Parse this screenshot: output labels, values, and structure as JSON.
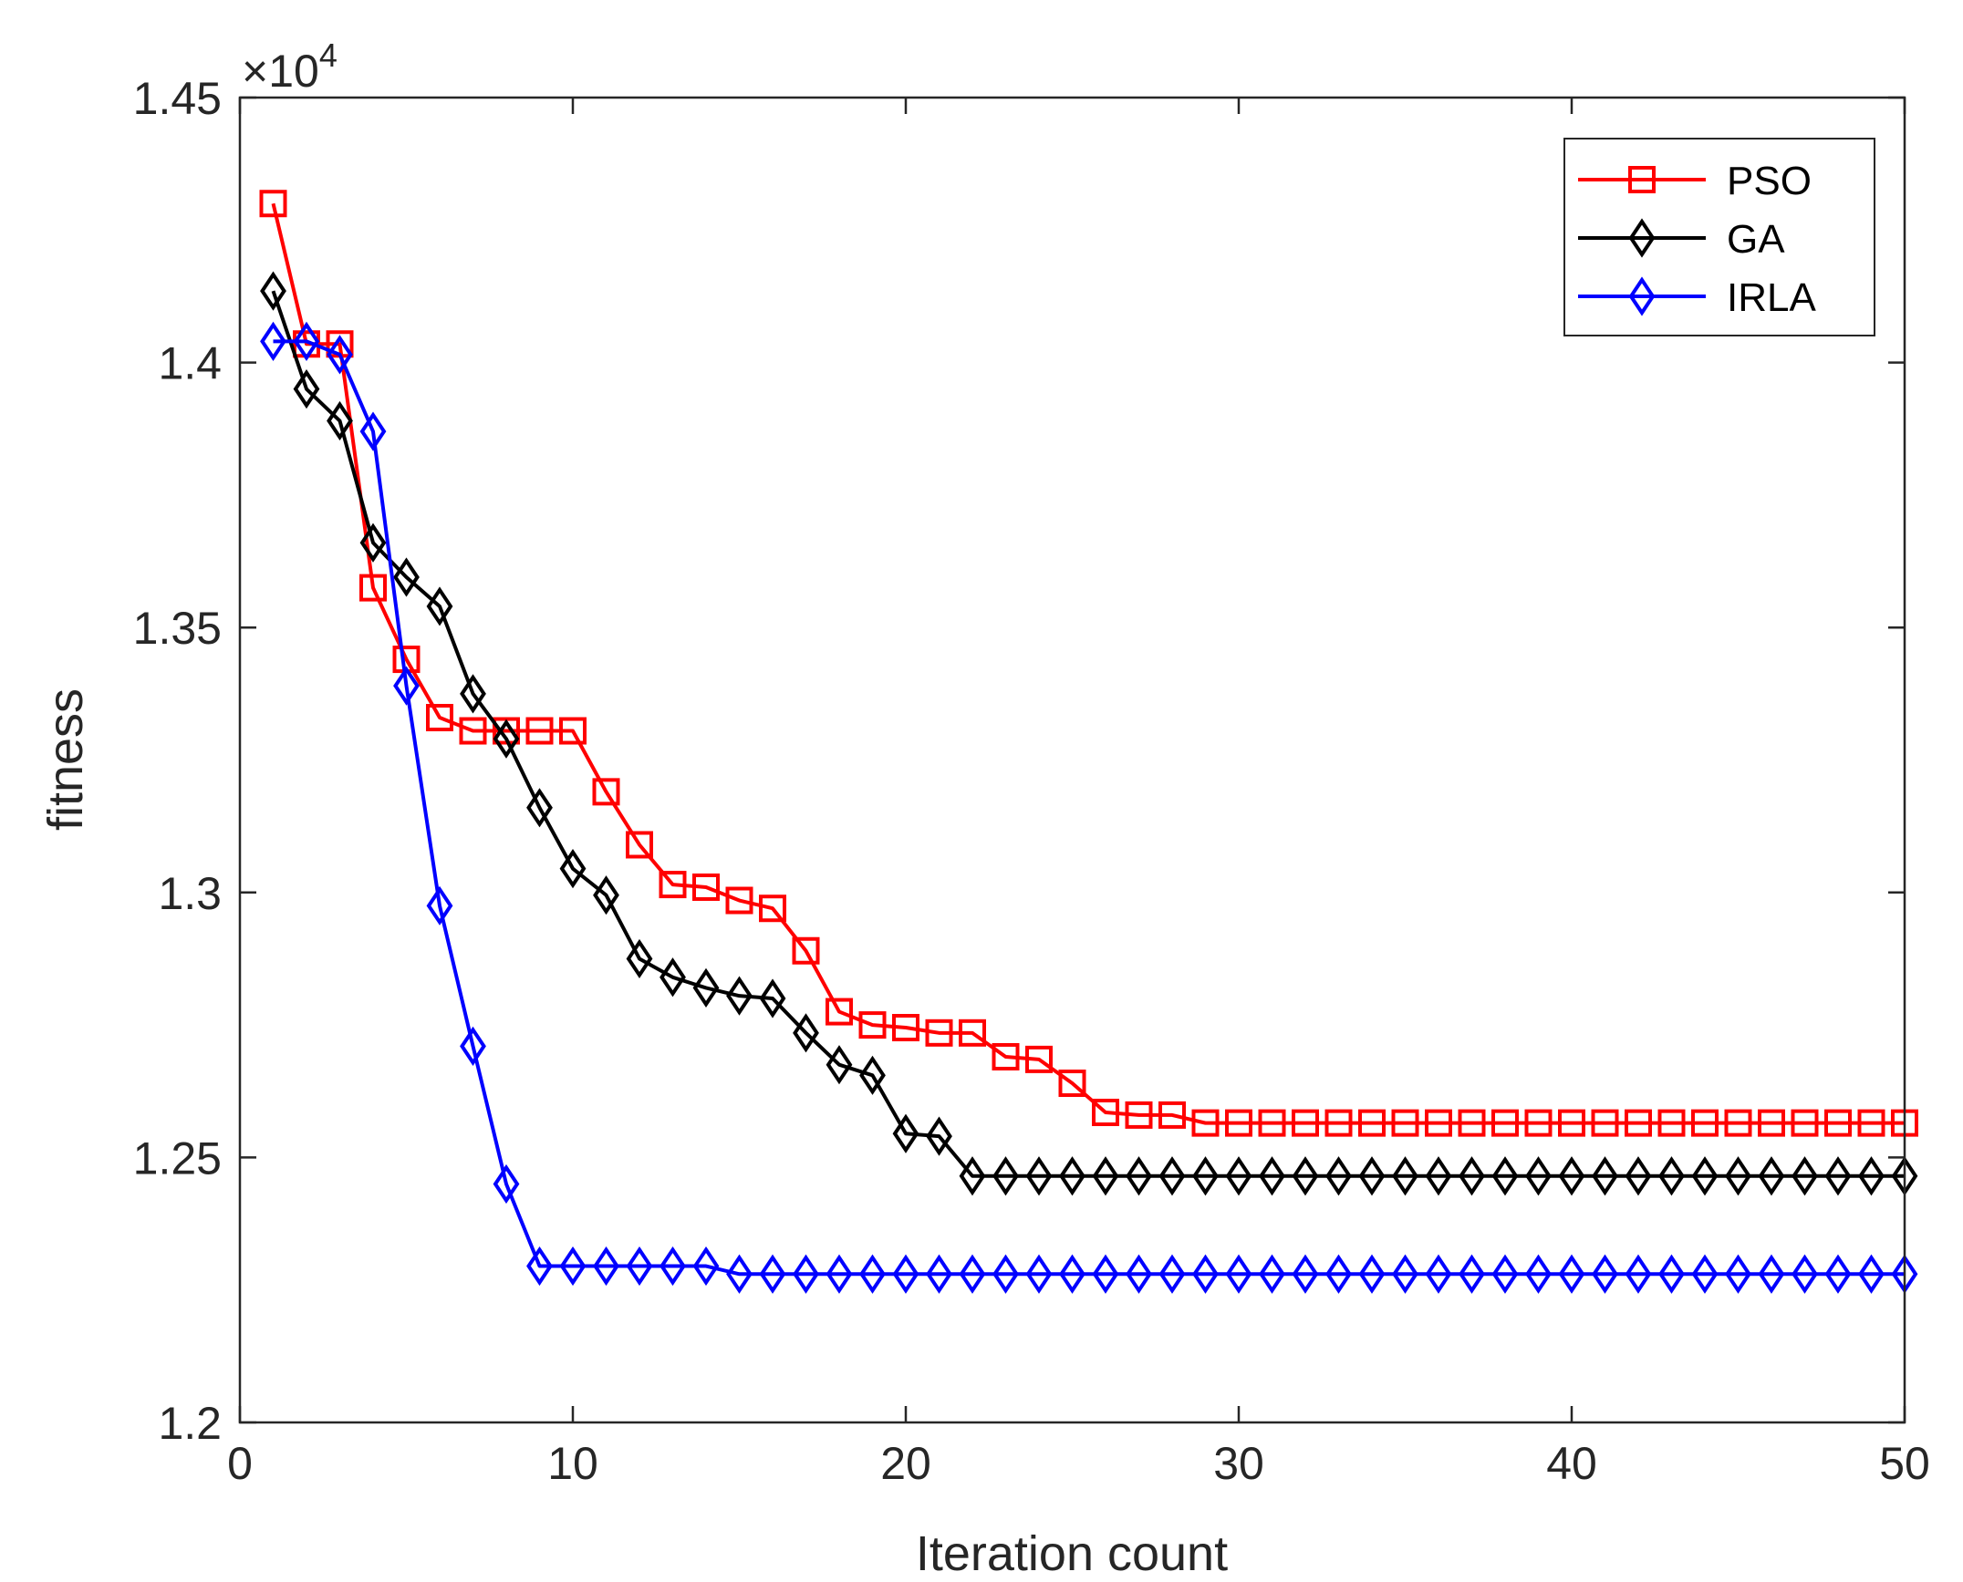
{
  "chart_data": {
    "type": "line",
    "title": "",
    "xlabel": "Iteration count",
    "ylabel": "fitness",
    "xlim": [
      0,
      50
    ],
    "ylim": [
      12000,
      14500
    ],
    "xticks": [
      0,
      10,
      20,
      30,
      40,
      50
    ],
    "xtick_labels": [
      "0",
      "10",
      "20",
      "30",
      "40",
      "50"
    ],
    "yticks": [
      12000,
      12500,
      13000,
      13500,
      14000,
      14500
    ],
    "ytick_labels": [
      "1.2",
      "1.25",
      "1.3",
      "1.35",
      "1.4",
      "1.45"
    ],
    "y_multiplier": {
      "base": "×10",
      "exponent": "4"
    },
    "grid": false,
    "legend_position": "top-right",
    "x": [
      1,
      2,
      3,
      4,
      5,
      6,
      7,
      8,
      9,
      10,
      11,
      12,
      13,
      14,
      15,
      16,
      17,
      18,
      19,
      20,
      21,
      22,
      23,
      24,
      25,
      26,
      27,
      28,
      29,
      30,
      31,
      32,
      33,
      34,
      35,
      36,
      37,
      38,
      39,
      40,
      41,
      42,
      43,
      44,
      45,
      46,
      47,
      48,
      49,
      50
    ],
    "series": [
      {
        "name": "PSO",
        "color": "#ff0000",
        "marker": "square",
        "values": [
          14300,
          14035,
          14035,
          13575,
          13440,
          13330,
          13305,
          13305,
          13305,
          13305,
          13190,
          13090,
          13015,
          13010,
          12985,
          12970,
          12890,
          12775,
          12750,
          12745,
          12735,
          12735,
          12690,
          12685,
          12640,
          12585,
          12580,
          12580,
          12565,
          12565,
          12565,
          12565,
          12565,
          12565,
          12565,
          12565,
          12565,
          12565,
          12565,
          12565,
          12565,
          12565,
          12565,
          12565,
          12565,
          12565,
          12565,
          12565,
          12565,
          12565
        ]
      },
      {
        "name": "GA",
        "color": "#000000",
        "marker": "diamond",
        "values": [
          14135,
          13950,
          13890,
          13660,
          13595,
          13540,
          13375,
          13290,
          13160,
          13045,
          12995,
          12875,
          12840,
          12820,
          12805,
          12800,
          12735,
          12675,
          12655,
          12545,
          12540,
          12465,
          12465,
          12465,
          12465,
          12465,
          12465,
          12465,
          12465,
          12465,
          12465,
          12465,
          12465,
          12465,
          12465,
          12465,
          12465,
          12465,
          12465,
          12465,
          12465,
          12465,
          12465,
          12465,
          12465,
          12465,
          12465,
          12465,
          12465,
          12465
        ]
      },
      {
        "name": "IRLA",
        "color": "#0000ff",
        "marker": "diamond",
        "values": [
          14040,
          14040,
          14015,
          13870,
          13390,
          12975,
          12710,
          12450,
          12295,
          12295,
          12295,
          12295,
          12295,
          12295,
          12280,
          12280,
          12280,
          12280,
          12280,
          12280,
          12280,
          12280,
          12280,
          12280,
          12280,
          12280,
          12280,
          12280,
          12280,
          12280,
          12280,
          12280,
          12280,
          12280,
          12280,
          12280,
          12280,
          12280,
          12280,
          12280,
          12280,
          12280,
          12280,
          12280,
          12280,
          12280,
          12280,
          12280,
          12280,
          12280
        ]
      }
    ]
  }
}
